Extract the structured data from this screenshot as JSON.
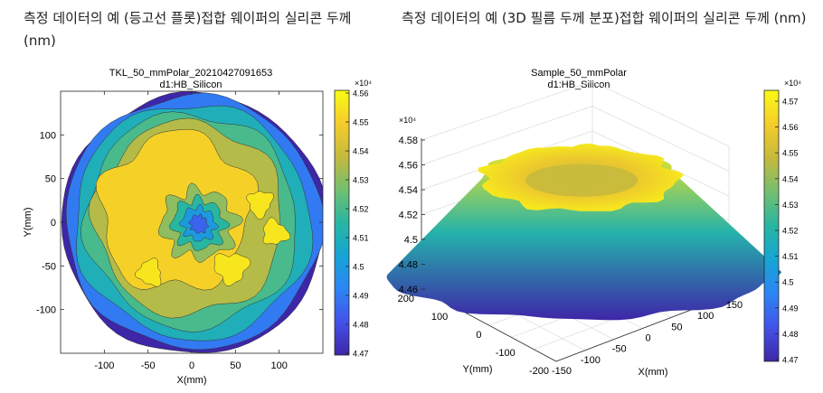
{
  "captions": {
    "left": "측정 데이터의 예 (등고선 플롯)접합 웨이퍼의 실리콘 두께 (nm)",
    "right": "측정 데이터의 예 (3D 필름 두께 분포)접합 웨이퍼의 실리콘 두께 (nm)"
  },
  "colormap": [
    "#3e26a8",
    "#4352e8",
    "#2c85f4",
    "#16a4d5",
    "#28b6a1",
    "#73bf70",
    "#c6ba3c",
    "#f5cc2b",
    "#f9fb14"
  ],
  "chart_data": [
    {
      "type": "contour",
      "title": "TKL_50_mmPolar_20210427091653",
      "subtitle": "d1:HB_Silicon",
      "xlabel": "X(mm)",
      "ylabel": "Y(mm)",
      "xlim": [
        -150,
        150
      ],
      "ylim": [
        -150,
        150
      ],
      "xticks": [
        "-100",
        "-50",
        "0",
        "50",
        "100"
      ],
      "yticks": [
        "100",
        "50",
        "0",
        "-50",
        "-100"
      ],
      "colorbar": {
        "exponent": "×10⁴",
        "min": 4.47,
        "max": 4.56,
        "ticks": [
          "4.56",
          "4.55",
          "4.54",
          "4.53",
          "4.52",
          "4.51",
          "4.5",
          "4.49",
          "4.48",
          "4.47"
        ]
      },
      "levels": [
        {
          "value": 4.47,
          "radius": 150
        },
        {
          "value": 4.49,
          "radius": 146
        },
        {
          "value": 4.51,
          "radius": 135
        },
        {
          "value": 4.52,
          "radius": 122
        },
        {
          "value": 4.535,
          "radius": 109
        },
        {
          "value": 4.55,
          "radius": 88
        }
      ],
      "center_dip": [
        {
          "value": 4.53,
          "radius": 41
        },
        {
          "value": 4.515,
          "radius": 29
        },
        {
          "value": 4.5,
          "radius": 19
        },
        {
          "value": 4.485,
          "radius": 10
        }
      ]
    },
    {
      "type": "surface3d",
      "title": "Sample_50_mmPolar",
      "subtitle": "d1:HB_Silicon",
      "xlabel": "X(mm)",
      "ylabel": "Y(mm)",
      "z_exponent": "×10⁴",
      "zlim": [
        4.46,
        4.58
      ],
      "zticks": [
        "4.58",
        "4.56",
        "4.54",
        "4.52",
        "4.5",
        "4.48",
        "4.46"
      ],
      "xticks": [
        "-150",
        "-100",
        "-50",
        "0",
        "50",
        "100",
        "150"
      ],
      "yticks": [
        "200",
        "100",
        "0",
        "-100",
        "-200"
      ],
      "colorbar": {
        "exponent": "×10⁴",
        "min": 4.47,
        "max": 4.57,
        "ticks": [
          "4.57",
          "4.56",
          "4.55",
          "4.54",
          "4.53",
          "4.52",
          "4.51",
          "4.5",
          "4.49",
          "4.48",
          "4.47"
        ]
      },
      "surface": {
        "edge_value": 4.47,
        "rim_value": 4.565,
        "center_value": 4.545
      }
    }
  ]
}
